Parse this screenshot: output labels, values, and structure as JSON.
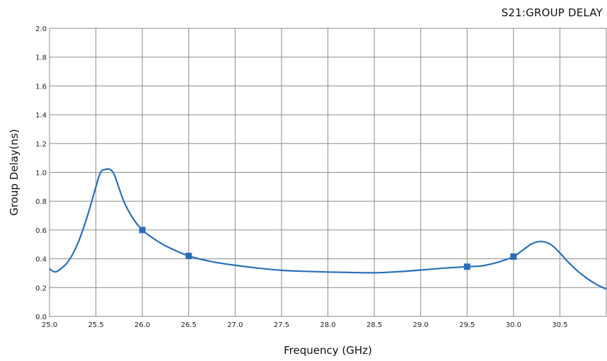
{
  "chart_data": {
    "type": "line",
    "title": "S21:GROUP DELAY",
    "xlabel": "Frequency (GHz)",
    "ylabel": "Group Delay(ns)",
    "xlim": [
      25.0,
      31.0
    ],
    "ylim": [
      0.0,
      2.0
    ],
    "x_ticks": [
      "25.0",
      "25.5",
      "26.0",
      "26.5",
      "27.0",
      "27.5",
      "28.0",
      "28.5",
      "29.0",
      "29.5",
      "30.0",
      "30.5"
    ],
    "y_ticks": [
      "0.0",
      "0.2",
      "0.4",
      "0.6",
      "0.8",
      "1.0",
      "1.2",
      "1.4",
      "1.6",
      "1.8",
      "2.0"
    ],
    "grid": true,
    "line_color": "#2a6fb5",
    "marker_color": "#2a6fb5",
    "series": [
      {
        "points": [
          [
            25.0,
            0.33
          ],
          [
            25.05,
            0.31
          ],
          [
            25.1,
            0.32
          ],
          [
            25.2,
            0.38
          ],
          [
            25.3,
            0.5
          ],
          [
            25.4,
            0.68
          ],
          [
            25.5,
            0.9
          ],
          [
            25.55,
            1.0
          ],
          [
            25.6,
            1.02
          ],
          [
            25.65,
            1.02
          ],
          [
            25.7,
            0.98
          ],
          [
            25.8,
            0.8
          ],
          [
            25.9,
            0.68
          ],
          [
            26.0,
            0.6
          ],
          [
            26.1,
            0.55
          ],
          [
            26.25,
            0.49
          ],
          [
            26.5,
            0.42
          ],
          [
            26.75,
            0.38
          ],
          [
            27.0,
            0.355
          ],
          [
            27.25,
            0.335
          ],
          [
            27.5,
            0.32
          ],
          [
            27.75,
            0.313
          ],
          [
            28.0,
            0.308
          ],
          [
            28.25,
            0.305
          ],
          [
            28.5,
            0.303
          ],
          [
            28.75,
            0.31
          ],
          [
            29.0,
            0.322
          ],
          [
            29.25,
            0.335
          ],
          [
            29.5,
            0.345
          ],
          [
            29.65,
            0.35
          ],
          [
            29.8,
            0.37
          ],
          [
            29.9,
            0.39
          ],
          [
            30.0,
            0.415
          ],
          [
            30.1,
            0.46
          ],
          [
            30.2,
            0.505
          ],
          [
            30.3,
            0.52
          ],
          [
            30.4,
            0.5
          ],
          [
            30.5,
            0.44
          ],
          [
            30.6,
            0.37
          ],
          [
            30.7,
            0.31
          ],
          [
            30.8,
            0.26
          ],
          [
            30.9,
            0.22
          ],
          [
            31.0,
            0.19
          ]
        ]
      }
    ],
    "markers": [
      {
        "x": 26.0,
        "y": 0.6
      },
      {
        "x": 26.5,
        "y": 0.42
      },
      {
        "x": 29.5,
        "y": 0.345
      },
      {
        "x": 30.0,
        "y": 0.415
      }
    ]
  }
}
